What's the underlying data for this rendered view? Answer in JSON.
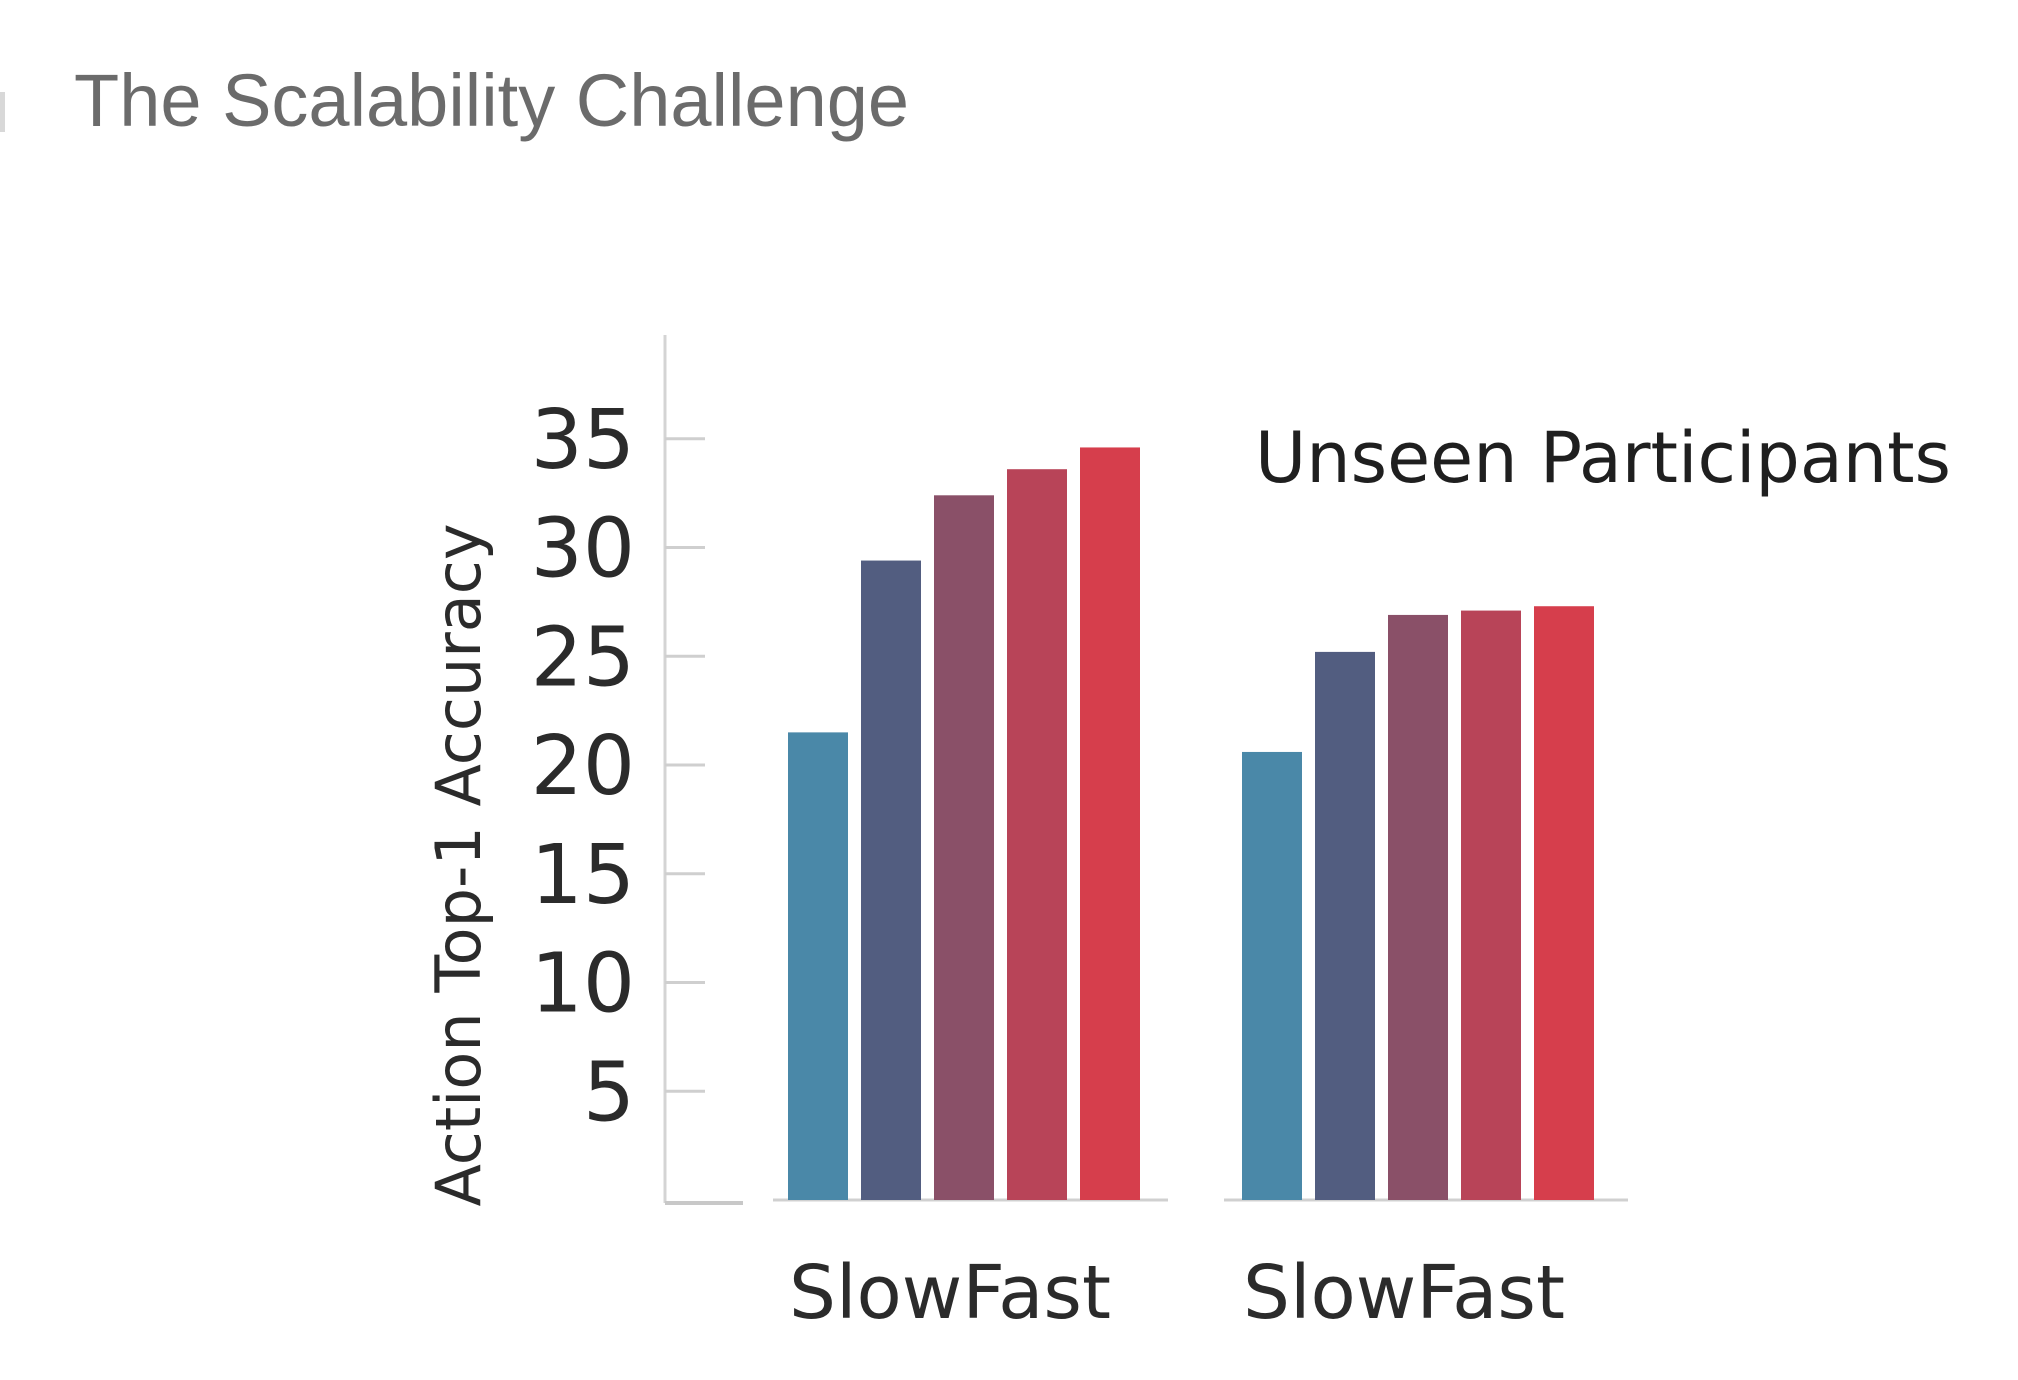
{
  "slide": {
    "title": "The Scalability Challenge"
  },
  "chart_data": {
    "type": "bar",
    "title": "",
    "xlabel": "",
    "ylabel": "Action Top-1 Accuracy",
    "ylim": [
      0,
      40
    ],
    "yticks": [
      5,
      10,
      15,
      20,
      25,
      30,
      35
    ],
    "grid": false,
    "annotations": [
      "Unseen Participants"
    ],
    "series_colors": [
      "#4a88a8",
      "#525d80",
      "#8a5068",
      "#b84458",
      "#d63e4c"
    ],
    "groups": [
      {
        "label": "SlowFast",
        "values": [
          21.5,
          29.4,
          32.4,
          33.6,
          34.6
        ]
      },
      {
        "label": "SlowFast",
        "values": [
          20.6,
          25.2,
          26.9,
          27.1,
          27.3
        ]
      }
    ]
  }
}
